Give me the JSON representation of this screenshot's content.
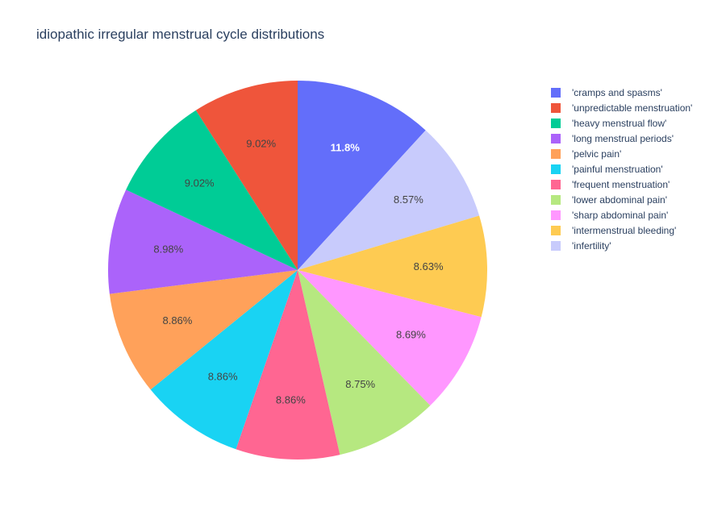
{
  "chart_data": {
    "type": "pie",
    "title": "idiopathic irregular menstrual cycle distributions",
    "direction": "clockwise",
    "start_angle": "12 o'clock",
    "legend_position": "right",
    "slices": [
      {
        "label": "'cramps and spasms'",
        "percent": 11.8,
        "text": "11.8%",
        "color": "#636efa",
        "text_color": "#ffffff"
      },
      {
        "label": "'infertility'",
        "percent": 8.57,
        "text": "8.57%",
        "color": "#c8cbfc",
        "text_color": "#444444"
      },
      {
        "label": "'intermenstrual bleeding'",
        "percent": 8.63,
        "text": "8.63%",
        "color": "#fecb52",
        "text_color": "#444444"
      },
      {
        "label": "'sharp abdominal pain'",
        "percent": 8.69,
        "text": "8.69%",
        "color": "#ff97ff",
        "text_color": "#444444"
      },
      {
        "label": "'lower abdominal pain'",
        "percent": 8.75,
        "text": "8.75%",
        "color": "#b6e880",
        "text_color": "#444444"
      },
      {
        "label": "'frequent menstruation'",
        "percent": 8.86,
        "text": "8.86%",
        "color": "#ff6692",
        "text_color": "#444444"
      },
      {
        "label": "'painful menstruation'",
        "percent": 8.86,
        "text": "8.86%",
        "color": "#19d3f3",
        "text_color": "#444444"
      },
      {
        "label": "'pelvic pain'",
        "percent": 8.86,
        "text": "8.86%",
        "color": "#ffa15a",
        "text_color": "#444444"
      },
      {
        "label": "'long menstrual periods'",
        "percent": 8.98,
        "text": "8.98%",
        "color": "#ab63fa",
        "text_color": "#444444"
      },
      {
        "label": "'heavy menstrual flow'",
        "percent": 9.02,
        "text": "9.02%",
        "color": "#00cc96",
        "text_color": "#444444"
      },
      {
        "label": "'unpredictable menstruation'",
        "percent": 9.02,
        "text": "9.02%",
        "color": "#ef553b",
        "text_color": "#444444"
      }
    ],
    "legend": [
      {
        "label": "'cramps and spasms'",
        "color": "#636efa"
      },
      {
        "label": "'unpredictable menstruation'",
        "color": "#ef553b"
      },
      {
        "label": "'heavy menstrual flow'",
        "color": "#00cc96"
      },
      {
        "label": "'long menstrual periods'",
        "color": "#ab63fa"
      },
      {
        "label": "'pelvic pain'",
        "color": "#ffa15a"
      },
      {
        "label": "'painful menstruation'",
        "color": "#19d3f3"
      },
      {
        "label": "'frequent menstruation'",
        "color": "#ff6692"
      },
      {
        "label": "'lower abdominal pain'",
        "color": "#b6e880"
      },
      {
        "label": "'sharp abdominal pain'",
        "color": "#ff97ff"
      },
      {
        "label": "'intermenstrual bleeding'",
        "color": "#fecb52"
      },
      {
        "label": "'infertility'",
        "color": "#c8cbfc"
      }
    ]
  }
}
